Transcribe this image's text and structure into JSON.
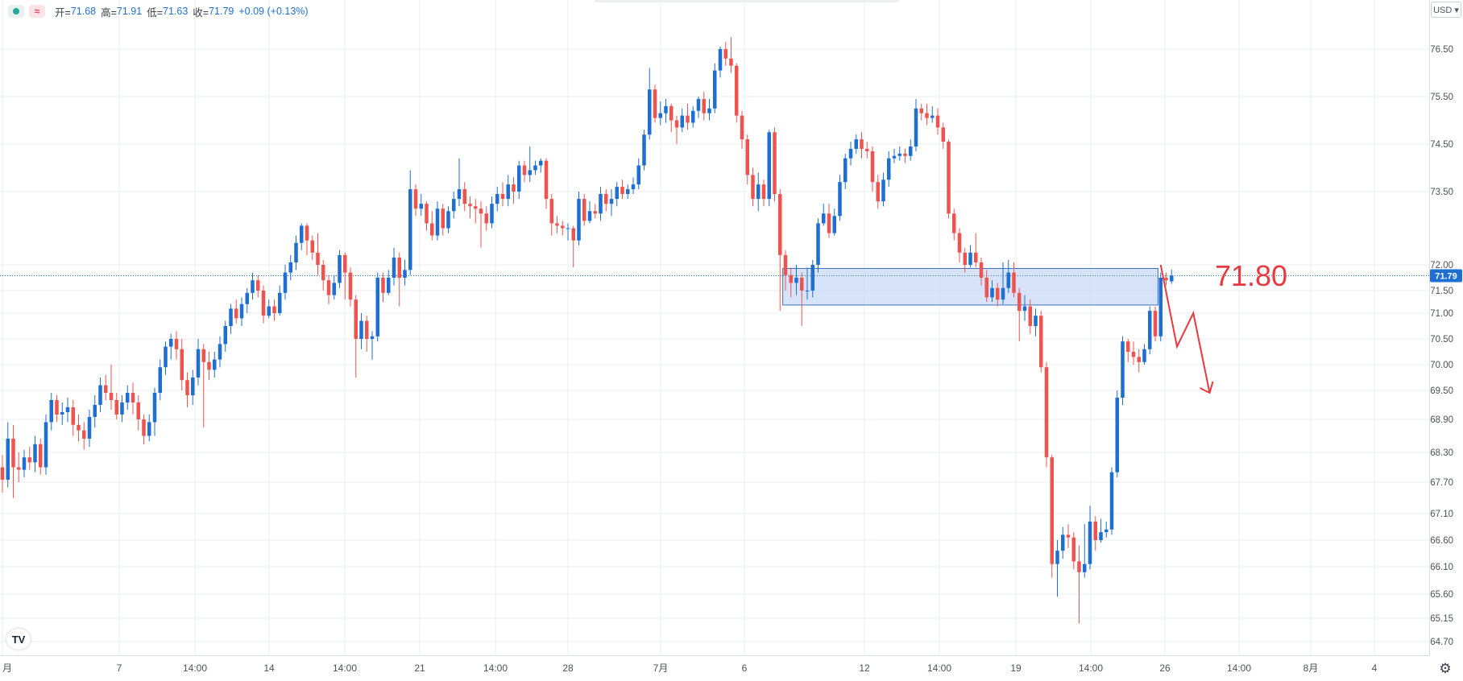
{
  "legend": {
    "open_label": "开=",
    "open_value": "71.68",
    "high_label": "高=",
    "high_value": "71.91",
    "low_label": "低=",
    "low_value": "71.63",
    "close_label": "收=",
    "close_value": "71.79",
    "change": "+0.09 (+0.13%)",
    "wave_symbol": "≈"
  },
  "currency_button": "USD ▾",
  "logo_text": "TV",
  "settings_icon": "gear-icon",
  "colors": {
    "up": "#1e6fd1",
    "down": "#ef5350",
    "zone_fill": "#c8daf5",
    "zone_stroke": "#3a6fc4",
    "annotation": "#e8393f",
    "price_tag": "#1e6fd1",
    "grid": "#e8ecf1"
  },
  "chart_data": {
    "type": "candlestick",
    "y_ticks": [
      "76.50",
      "75.50",
      "74.50",
      "73.50",
      "72.00",
      "71.50",
      "71.00",
      "70.50",
      "70.00",
      "69.50",
      "68.90",
      "68.30",
      "67.70",
      "67.10",
      "66.60",
      "66.10",
      "65.60",
      "65.15",
      "64.70"
    ],
    "ylim": [
      64.55,
      76.95
    ],
    "x_ticks": [
      "月",
      "7",
      "14:00",
      "14",
      "14:00",
      "21",
      "14:00",
      "28",
      "7月",
      "6",
      "12",
      "14:00",
      "19",
      "14:00",
      "26",
      "14:00",
      "8月",
      "4"
    ],
    "last_price": 71.79,
    "last_price_label": "71.79",
    "resistance_zone": {
      "low": 71.18,
      "high": 71.93,
      "from_candle": 144,
      "to_candle": 212
    },
    "zone_label": "71.80",
    "projection_path": [
      [
        213,
        72.0
      ],
      [
        216,
        70.35
      ],
      [
        219,
        71.0
      ],
      [
        222,
        69.45
      ]
    ],
    "candles": [
      [
        68.0,
        67.75,
        68.25,
        67.5
      ],
      [
        67.75,
        68.55,
        68.85,
        67.6
      ],
      [
        68.55,
        68.0,
        68.8,
        67.4
      ],
      [
        68.0,
        67.95,
        68.3,
        67.7
      ],
      [
        67.95,
        68.2,
        68.35,
        67.8
      ],
      [
        68.2,
        68.1,
        68.4,
        67.95
      ],
      [
        68.1,
        68.45,
        68.6,
        67.9
      ],
      [
        68.45,
        68.0,
        68.55,
        67.85
      ],
      [
        68.0,
        68.85,
        69.0,
        67.85
      ],
      [
        68.85,
        69.3,
        69.45,
        68.7
      ],
      [
        69.3,
        69.0,
        69.4,
        68.85
      ],
      [
        69.0,
        69.05,
        69.25,
        68.8
      ],
      [
        69.05,
        69.15,
        69.35,
        68.85
      ],
      [
        69.15,
        68.8,
        69.3,
        68.6
      ],
      [
        68.8,
        68.7,
        69.0,
        68.5
      ],
      [
        68.7,
        68.55,
        68.85,
        68.35
      ],
      [
        68.55,
        68.95,
        69.1,
        68.4
      ],
      [
        68.95,
        69.2,
        69.4,
        68.75
      ],
      [
        69.2,
        69.6,
        69.75,
        69.05
      ],
      [
        69.6,
        69.45,
        69.8,
        69.3
      ],
      [
        69.45,
        69.3,
        70.0,
        69.1
      ],
      [
        69.3,
        69.0,
        69.45,
        68.9
      ],
      [
        69.0,
        69.25,
        69.4,
        68.85
      ],
      [
        69.25,
        69.45,
        69.6,
        69.1
      ],
      [
        69.45,
        69.25,
        69.65,
        69.0
      ],
      [
        69.25,
        68.9,
        69.4,
        68.7
      ],
      [
        68.9,
        68.6,
        69.0,
        68.45
      ],
      [
        68.6,
        68.85,
        69.0,
        68.5
      ],
      [
        68.85,
        69.45,
        69.55,
        68.6
      ],
      [
        69.45,
        69.95,
        70.1,
        69.3
      ],
      [
        69.95,
        70.35,
        70.45,
        69.8
      ],
      [
        70.35,
        70.5,
        70.6,
        70.1
      ],
      [
        70.5,
        70.3,
        70.65,
        70.1
      ],
      [
        70.3,
        69.7,
        70.5,
        69.5
      ],
      [
        69.7,
        69.4,
        69.85,
        69.15
      ],
      [
        69.4,
        69.75,
        69.9,
        69.2
      ],
      [
        69.75,
        70.3,
        70.5,
        69.6
      ],
      [
        70.3,
        70.05,
        70.4,
        68.75
      ],
      [
        70.05,
        69.9,
        70.25,
        69.7
      ],
      [
        69.9,
        70.1,
        70.25,
        69.75
      ],
      [
        70.1,
        70.4,
        70.55,
        69.95
      ],
      [
        70.4,
        70.75,
        70.85,
        70.25
      ],
      [
        70.75,
        71.1,
        71.2,
        70.6
      ],
      [
        71.1,
        70.9,
        71.3,
        70.8
      ],
      [
        70.9,
        71.2,
        71.35,
        70.75
      ],
      [
        71.2,
        71.45,
        71.55,
        71.0
      ],
      [
        71.45,
        71.7,
        71.85,
        71.3
      ],
      [
        71.7,
        71.5,
        71.8,
        71.35
      ],
      [
        71.5,
        70.95,
        71.6,
        70.8
      ],
      [
        70.95,
        71.15,
        71.3,
        70.9
      ],
      [
        71.15,
        71.0,
        71.3,
        70.85
      ],
      [
        71.0,
        71.45,
        71.6,
        70.95
      ],
      [
        71.45,
        71.85,
        72.0,
        71.3
      ],
      [
        71.85,
        72.05,
        72.2,
        71.7
      ],
      [
        72.05,
        72.45,
        72.6,
        71.9
      ],
      [
        72.45,
        72.8,
        72.85,
        72.3
      ],
      [
        72.8,
        72.5,
        72.85,
        72.2
      ],
      [
        72.5,
        72.25,
        72.6,
        72.1
      ],
      [
        72.25,
        72.0,
        72.65,
        71.8
      ],
      [
        72.0,
        71.7,
        72.1,
        71.5
      ],
      [
        71.7,
        71.4,
        71.8,
        71.2
      ],
      [
        71.4,
        71.65,
        71.8,
        71.3
      ],
      [
        71.65,
        72.2,
        72.3,
        71.55
      ],
      [
        72.2,
        71.85,
        72.25,
        71.3
      ],
      [
        71.85,
        71.3,
        71.95,
        71.15
      ],
      [
        71.3,
        70.5,
        71.4,
        69.75
      ],
      [
        70.5,
        70.85,
        71.0,
        70.3
      ],
      [
        70.85,
        70.5,
        70.95,
        70.25
      ],
      [
        70.5,
        70.55,
        70.65,
        70.1
      ],
      [
        70.55,
        71.75,
        71.85,
        70.45
      ],
      [
        71.75,
        71.45,
        71.85,
        71.25
      ],
      [
        71.45,
        71.75,
        71.9,
        71.4
      ],
      [
        71.75,
        72.15,
        72.35,
        71.6
      ],
      [
        72.15,
        71.75,
        72.25,
        71.15
      ],
      [
        71.75,
        71.9,
        72.1,
        71.6
      ],
      [
        71.9,
        73.55,
        73.95,
        71.8
      ],
      [
        73.55,
        73.15,
        73.65,
        73.0
      ],
      [
        73.15,
        73.25,
        73.45,
        73.0
      ],
      [
        73.25,
        72.85,
        73.3,
        72.7
      ],
      [
        72.85,
        72.6,
        73.1,
        72.5
      ],
      [
        72.6,
        73.15,
        73.3,
        72.5
      ],
      [
        73.15,
        72.75,
        73.25,
        72.6
      ],
      [
        72.75,
        73.1,
        73.2,
        72.65
      ],
      [
        73.1,
        73.35,
        73.5,
        72.95
      ],
      [
        73.35,
        73.55,
        74.2,
        73.2
      ],
      [
        73.55,
        73.25,
        73.7,
        73.1
      ],
      [
        73.25,
        73.2,
        73.4,
        72.95
      ],
      [
        73.2,
        73.15,
        73.35,
        72.85
      ],
      [
        73.15,
        73.05,
        73.3,
        72.35
      ],
      [
        73.05,
        72.85,
        73.2,
        72.7
      ],
      [
        72.85,
        73.25,
        73.4,
        72.75
      ],
      [
        73.25,
        73.45,
        73.6,
        73.1
      ],
      [
        73.45,
        73.35,
        73.7,
        73.2
      ],
      [
        73.35,
        73.65,
        73.85,
        73.2
      ],
      [
        73.65,
        73.5,
        73.8,
        73.25
      ],
      [
        73.5,
        74.05,
        74.15,
        73.35
      ],
      [
        74.05,
        73.85,
        74.15,
        73.7
      ],
      [
        73.85,
        73.95,
        74.45,
        73.7
      ],
      [
        73.95,
        74.05,
        74.15,
        73.85
      ],
      [
        74.05,
        74.15,
        74.2,
        73.9
      ],
      [
        74.15,
        73.35,
        74.2,
        73.15
      ],
      [
        73.35,
        72.85,
        73.45,
        72.6
      ],
      [
        72.85,
        72.8,
        73.0,
        72.65
      ],
      [
        72.8,
        72.75,
        72.9,
        72.6
      ],
      [
        72.75,
        72.75,
        72.85,
        72.5
      ],
      [
        72.75,
        72.5,
        72.8,
        71.95
      ],
      [
        72.5,
        73.35,
        73.5,
        72.4
      ],
      [
        73.35,
        72.9,
        73.45,
        72.8
      ],
      [
        72.9,
        73.1,
        73.3,
        72.85
      ],
      [
        73.1,
        73.05,
        73.25,
        72.95
      ],
      [
        73.05,
        73.45,
        73.6,
        72.9
      ],
      [
        73.45,
        73.25,
        73.55,
        73.1
      ],
      [
        73.25,
        73.35,
        73.55,
        73.0
      ],
      [
        73.35,
        73.6,
        73.7,
        73.2
      ],
      [
        73.6,
        73.45,
        73.75,
        73.35
      ],
      [
        73.45,
        73.55,
        73.65,
        73.35
      ],
      [
        73.55,
        73.65,
        73.8,
        73.45
      ],
      [
        73.65,
        74.05,
        74.2,
        73.55
      ],
      [
        74.05,
        74.7,
        74.8,
        73.95
      ],
      [
        74.7,
        75.65,
        76.1,
        74.6
      ],
      [
        75.65,
        75.05,
        75.75,
        74.95
      ],
      [
        75.05,
        75.15,
        75.4,
        74.9
      ],
      [
        75.15,
        75.3,
        75.45,
        74.95
      ],
      [
        75.3,
        75.0,
        75.35,
        74.75
      ],
      [
        75.0,
        74.85,
        75.1,
        74.5
      ],
      [
        74.85,
        75.1,
        75.25,
        74.75
      ],
      [
        75.1,
        74.95,
        75.35,
        74.8
      ],
      [
        74.95,
        75.2,
        75.3,
        74.85
      ],
      [
        75.2,
        75.45,
        75.5,
        75.05
      ],
      [
        75.45,
        75.15,
        75.6,
        75.0
      ],
      [
        75.15,
        75.25,
        75.45,
        75.0
      ],
      [
        75.25,
        76.05,
        76.2,
        75.15
      ],
      [
        76.05,
        76.5,
        76.55,
        75.9
      ],
      [
        76.5,
        76.3,
        76.65,
        76.15
      ],
      [
        76.3,
        76.15,
        76.75,
        76.0
      ],
      [
        76.15,
        75.1,
        76.2,
        74.95
      ],
      [
        75.1,
        74.6,
        75.2,
        74.4
      ],
      [
        74.6,
        73.85,
        74.7,
        73.65
      ],
      [
        73.85,
        73.35,
        74.0,
        73.2
      ],
      [
        73.35,
        73.65,
        73.9,
        73.1
      ],
      [
        73.65,
        73.35,
        73.75,
        73.2
      ],
      [
        73.35,
        74.75,
        74.8,
        73.2
      ],
      [
        74.75,
        73.45,
        74.85,
        73.3
      ],
      [
        73.45,
        72.2,
        73.55,
        71.05
      ],
      [
        72.2,
        71.8,
        72.3,
        71.5
      ],
      [
        71.8,
        71.65,
        71.95,
        71.35
      ],
      [
        71.65,
        71.75,
        72.0,
        71.4
      ],
      [
        71.75,
        71.5,
        71.85,
        70.75
      ],
      [
        71.5,
        71.5,
        71.95,
        71.3
      ],
      [
        71.5,
        72.0,
        72.1,
        71.35
      ],
      [
        72.0,
        72.85,
        72.95,
        71.85
      ],
      [
        72.85,
        73.05,
        73.25,
        72.8
      ],
      [
        73.05,
        72.65,
        73.25,
        72.55
      ],
      [
        72.65,
        73.0,
        73.15,
        72.6
      ],
      [
        73.0,
        73.7,
        73.85,
        72.9
      ],
      [
        73.7,
        74.2,
        74.3,
        73.55
      ],
      [
        74.2,
        74.4,
        74.55,
        74.05
      ],
      [
        74.4,
        74.6,
        74.7,
        74.3
      ],
      [
        74.6,
        74.4,
        74.75,
        74.2
      ],
      [
        74.4,
        74.35,
        74.55,
        74.2
      ],
      [
        74.35,
        73.7,
        74.45,
        73.5
      ],
      [
        73.7,
        73.3,
        73.85,
        73.15
      ],
      [
        73.3,
        73.75,
        73.9,
        73.2
      ],
      [
        73.75,
        74.2,
        74.35,
        73.6
      ],
      [
        74.2,
        74.25,
        74.4,
        74.1
      ],
      [
        74.25,
        74.3,
        74.45,
        74.15
      ],
      [
        74.3,
        74.25,
        74.4,
        74.1
      ],
      [
        74.25,
        74.45,
        74.6,
        74.15
      ],
      [
        74.45,
        75.25,
        75.45,
        74.35
      ],
      [
        75.25,
        75.15,
        75.35,
        75.0
      ],
      [
        75.15,
        75.05,
        75.35,
        74.9
      ],
      [
        75.05,
        75.1,
        75.3,
        74.95
      ],
      [
        75.1,
        74.85,
        75.25,
        74.7
      ],
      [
        74.85,
        74.55,
        74.95,
        74.4
      ],
      [
        74.55,
        73.05,
        74.6,
        72.95
      ],
      [
        73.05,
        72.65,
        73.15,
        72.5
      ],
      [
        72.65,
        72.25,
        72.75,
        72.05
      ],
      [
        72.25,
        72.0,
        72.35,
        71.85
      ],
      [
        72.0,
        72.25,
        72.4,
        71.95
      ],
      [
        72.25,
        72.05,
        72.65,
        71.95
      ],
      [
        72.05,
        71.75,
        72.15,
        71.6
      ],
      [
        71.75,
        71.35,
        71.9,
        71.25
      ],
      [
        71.35,
        71.55,
        71.7,
        71.25
      ],
      [
        71.55,
        71.3,
        71.65,
        71.15
      ],
      [
        71.3,
        71.55,
        72.05,
        71.2
      ],
      [
        71.55,
        71.85,
        72.1,
        71.45
      ],
      [
        71.85,
        71.45,
        72.05,
        71.35
      ],
      [
        71.45,
        71.05,
        71.55,
        70.45
      ],
      [
        71.05,
        71.15,
        71.4,
        70.85
      ],
      [
        71.15,
        70.75,
        71.3,
        70.6
      ],
      [
        70.75,
        70.95,
        71.1,
        70.55
      ],
      [
        70.95,
        69.95,
        71.05,
        69.85
      ],
      [
        69.95,
        68.2,
        70.05,
        68.0
      ],
      [
        68.2,
        66.15,
        68.25,
        65.9
      ],
      [
        66.15,
        66.4,
        66.6,
        65.55
      ],
      [
        66.4,
        66.7,
        66.85,
        66.25
      ],
      [
        66.7,
        66.65,
        66.9,
        66.45
      ],
      [
        66.65,
        66.2,
        66.75,
        66.05
      ],
      [
        66.2,
        66.0,
        66.5,
        65.05
      ],
      [
        66.0,
        66.15,
        66.9,
        65.9
      ],
      [
        66.15,
        66.95,
        67.25,
        66.05
      ],
      [
        66.95,
        66.6,
        67.05,
        66.4
      ],
      [
        66.6,
        66.75,
        67.0,
        66.55
      ],
      [
        66.75,
        66.8,
        66.95,
        66.65
      ],
      [
        66.8,
        67.9,
        68.0,
        66.7
      ],
      [
        67.9,
        69.35,
        69.5,
        67.8
      ],
      [
        69.35,
        70.45,
        70.55,
        69.2
      ],
      [
        70.45,
        70.25,
        70.5,
        70.05
      ],
      [
        70.25,
        70.15,
        70.45,
        70.0
      ],
      [
        70.15,
        70.05,
        70.3,
        69.85
      ],
      [
        70.05,
        70.3,
        70.4,
        70.0
      ],
      [
        70.3,
        71.05,
        71.15,
        70.2
      ],
      [
        71.05,
        70.55,
        71.15,
        70.45
      ],
      [
        70.55,
        71.75,
        71.85,
        70.45
      ],
      [
        71.75,
        71.7,
        71.85,
        71.6
      ],
      [
        71.68,
        71.79,
        71.91,
        71.63
      ]
    ]
  }
}
